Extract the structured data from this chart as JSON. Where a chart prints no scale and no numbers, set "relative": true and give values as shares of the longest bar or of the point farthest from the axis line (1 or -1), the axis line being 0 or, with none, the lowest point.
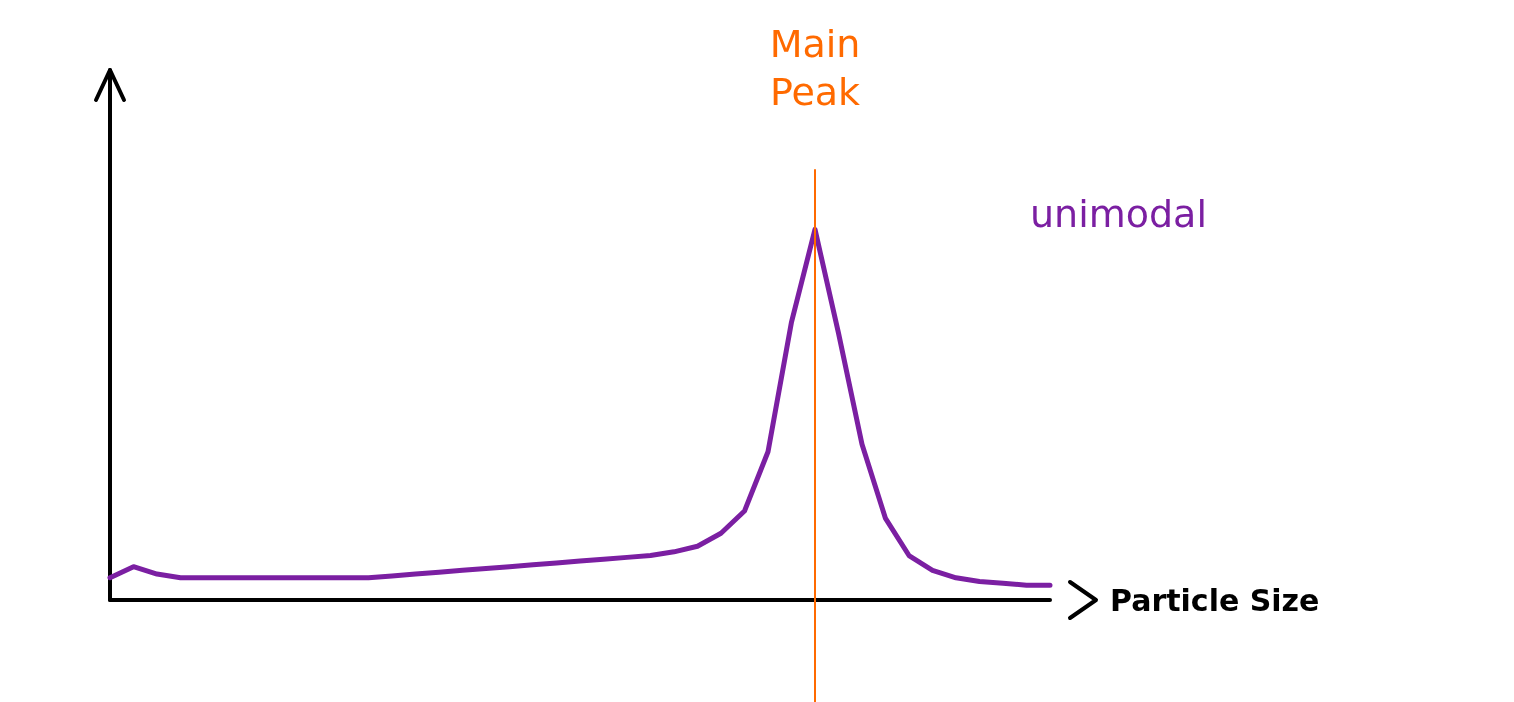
{
  "chart_data": {
    "type": "line",
    "relative": true,
    "xlabel": "Particle Size",
    "annotations": [
      "Main Peak",
      "unimodal"
    ],
    "marker": "none",
    "line_style": "solid",
    "categories": [
      null,
      null,
      null,
      null,
      null,
      null,
      null,
      null,
      null,
      null,
      null,
      null,
      null,
      null,
      null,
      null,
      null,
      null,
      null,
      null,
      null,
      null,
      null,
      null,
      null,
      null,
      null,
      null,
      null,
      null,
      null,
      null,
      null,
      null,
      null,
      null,
      null,
      null,
      null,
      null,
      null
    ],
    "series": [
      {
        "color": "#7b1fa2",
        "values": [
          0.06,
          0.09,
          0.07,
          0.06,
          0.06,
          0.06,
          0.06,
          0.06,
          0.06,
          0.06,
          0.06,
          0.06,
          0.065,
          0.07,
          0.075,
          0.08,
          0.085,
          0.09,
          0.095,
          0.1,
          0.105,
          0.11,
          0.115,
          0.12,
          0.13,
          0.145,
          0.18,
          0.24,
          0.4,
          0.75,
          1,
          0.72,
          0.42,
          0.22,
          0.12,
          0.08,
          0.06,
          0.05,
          0.045,
          0.04,
          0.04
        ]
      }
    ]
  }
}
